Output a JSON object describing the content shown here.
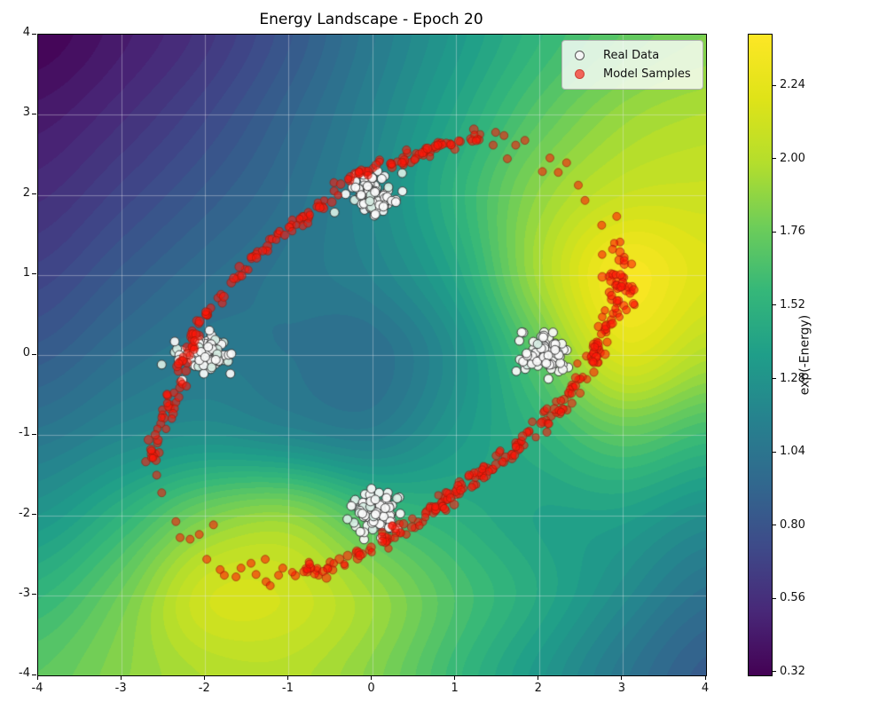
{
  "title": "Energy Landscape - Epoch 20",
  "legend": {
    "items": [
      {
        "label": "Real Data",
        "marker_fill": "#f5f5f5",
        "marker_edge": "#555555"
      },
      {
        "label": "Model Samples",
        "marker_fill": "#f2655a",
        "marker_edge": "#cc4437"
      }
    ]
  },
  "axes": {
    "xtick_labels": [
      "-4",
      "-3",
      "-2",
      "-1",
      "0",
      "1",
      "2",
      "3",
      "4"
    ],
    "xtick_values": [
      -4,
      -3,
      -2,
      -1,
      0,
      1,
      2,
      3,
      4
    ],
    "ytick_labels": [
      "4",
      "3",
      "2",
      "1",
      "0",
      "-1",
      "-2",
      "-3",
      "-4"
    ],
    "ytick_values": [
      4,
      3,
      2,
      1,
      0,
      -1,
      -2,
      -3,
      -4
    ],
    "grid_color": "rgba(235,235,240,0.38)"
  },
  "colorbar": {
    "label": "exp(-Energy)",
    "tick_labels": [
      "2.24",
      "2.00",
      "1.76",
      "1.52",
      "1.28",
      "1.04",
      "0.80",
      "0.56",
      "0.32"
    ],
    "tick_values": [
      2.24,
      2.0,
      1.76,
      1.52,
      1.28,
      1.04,
      0.8,
      0.56,
      0.32
    ]
  },
  "chart_data": {
    "type": "heatmap",
    "title": "Energy Landscape - Epoch 20",
    "xlim": [
      -4,
      4
    ],
    "ylim": [
      -4,
      4
    ],
    "grid": true,
    "legend_position": "upper right",
    "colorbar_label": "exp(-Energy)",
    "vmin": 0.31,
    "vmax": 2.41,
    "contour_step": 0.052,
    "colormap": {
      "name": "viridis",
      "stops": [
        [
          0.0,
          "#440154"
        ],
        [
          0.1,
          "#482878"
        ],
        [
          0.2,
          "#3e4a89"
        ],
        [
          0.3,
          "#31688e"
        ],
        [
          0.4,
          "#26828e"
        ],
        [
          0.5,
          "#1f9e89"
        ],
        [
          0.6,
          "#35b779"
        ],
        [
          0.7,
          "#6dcd59"
        ],
        [
          0.8,
          "#b4de2c"
        ],
        [
          0.9,
          "#dfe318"
        ],
        [
          1.0,
          "#fde725"
        ]
      ]
    },
    "energy_grid": {
      "x": [
        -4,
        -3,
        -2,
        -1,
        0,
        1,
        2,
        3,
        4
      ],
      "y": [
        4,
        3,
        2,
        1,
        0,
        -1,
        -2,
        -3,
        -4
      ],
      "exp_neg_energy": [
        [
          0.32,
          0.45,
          0.6,
          0.82,
          1.08,
          1.32,
          1.55,
          1.72,
          1.82
        ],
        [
          0.44,
          0.56,
          0.72,
          0.92,
          1.15,
          1.42,
          1.7,
          1.9,
          1.98
        ],
        [
          0.56,
          0.7,
          0.85,
          1.0,
          1.2,
          1.52,
          1.88,
          2.08,
          2.1
        ],
        [
          0.7,
          0.85,
          0.98,
          1.06,
          1.15,
          1.42,
          1.95,
          2.36,
          2.2
        ],
        [
          0.86,
          1.0,
          1.08,
          1.04,
          1.0,
          1.25,
          1.72,
          2.18,
          2.0
        ],
        [
          1.06,
          1.18,
          1.25,
          1.18,
          1.12,
          1.32,
          1.52,
          1.72,
          1.6
        ],
        [
          1.3,
          1.52,
          1.8,
          1.88,
          1.62,
          1.5,
          1.4,
          1.38,
          1.25
        ],
        [
          1.55,
          1.78,
          2.12,
          2.12,
          1.92,
          1.66,
          1.45,
          1.22,
          1.02
        ],
        [
          1.72,
          1.86,
          1.98,
          2.0,
          1.85,
          1.58,
          1.32,
          1.06,
          0.86
        ]
      ]
    },
    "real_data": {
      "clusters": [
        {
          "center": [
            0.0,
            2.0
          ],
          "std": [
            0.14,
            0.12
          ],
          "count": 88
        },
        {
          "center": [
            -2.0,
            0.0
          ],
          "std": [
            0.14,
            0.12
          ],
          "count": 88
        },
        {
          "center": [
            2.05,
            0.0
          ],
          "std": [
            0.14,
            0.13
          ],
          "count": 88
        },
        {
          "center": [
            0.02,
            -2.0
          ],
          "std": [
            0.14,
            0.13
          ],
          "count": 88
        }
      ],
      "outliers": [
        [
          -0.45,
          1.78
        ],
        [
          0.3,
          -1.79
        ],
        [
          -2.52,
          -0.12
        ],
        [
          0.36,
          2.27
        ]
      ],
      "style": {
        "fill": "rgba(250,250,250,0.92)",
        "fill_alt": "rgba(215,238,228,0.92)",
        "edge": "rgba(45,45,45,0.9)",
        "radius": 5
      }
    },
    "model_samples": {
      "blob": {
        "center": [
          2.96,
          0.88
        ],
        "std": [
          0.09,
          0.22
        ],
        "count": 42
      },
      "segments": [
        {
          "pts": [
            [
              -0.62,
              -2.7
            ],
            [
              -0.2,
              -2.5
            ],
            [
              0.15,
              -2.32
            ],
            [
              0.55,
              -2.05
            ],
            [
              1.0,
              -1.72
            ],
            [
              1.45,
              -1.38
            ],
            [
              1.9,
              -1.0
            ],
            [
              2.3,
              -0.6
            ],
            [
              2.6,
              -0.15
            ],
            [
              2.78,
              0.25
            ],
            [
              2.9,
              0.62
            ]
          ],
          "count": 205,
          "jitter": 0.05
        },
        {
          "pts": [
            [
              1.33,
              2.72
            ],
            [
              1.1,
              2.7
            ],
            [
              0.85,
              2.62
            ],
            [
              0.6,
              2.52
            ],
            [
              0.38,
              2.44
            ],
            [
              0.13,
              2.37
            ],
            [
              -0.12,
              2.28
            ],
            [
              -0.35,
              2.12
            ],
            [
              -0.52,
              1.96
            ],
            [
              -0.66,
              1.82
            ]
          ],
          "count": 78,
          "jitter": 0.045
        },
        {
          "pts": [
            [
              -0.7,
              1.78
            ],
            [
              -0.95,
              1.62
            ],
            [
              -1.2,
              1.42
            ],
            [
              -1.42,
              1.18
            ],
            [
              -1.6,
              0.98
            ],
            [
              -1.78,
              0.75
            ],
            [
              -1.95,
              0.55
            ],
            [
              -2.08,
              0.42
            ]
          ],
          "count": 55,
          "jitter": 0.04
        },
        {
          "pts": [
            [
              -2.12,
              0.32
            ],
            [
              -2.2,
              0.05
            ],
            [
              -2.3,
              -0.25
            ],
            [
              -2.42,
              -0.55
            ],
            [
              -2.52,
              -0.85
            ],
            [
              -2.6,
              -1.1
            ],
            [
              -2.65,
              -1.3
            ]
          ],
          "count": 62,
          "jitter": 0.045
        },
        {
          "pts": [
            [
              -1.05,
              -2.72
            ],
            [
              -0.85,
              -2.7
            ],
            [
              -0.62,
              -2.7
            ]
          ],
          "count": 14,
          "jitter": 0.05
        }
      ],
      "outliers": [
        [
          2.93,
          1.73
        ],
        [
          2.75,
          1.62
        ],
        [
          2.55,
          1.93
        ],
        [
          2.47,
          2.12
        ],
        [
          2.33,
          2.4
        ],
        [
          2.23,
          2.28
        ],
        [
          2.13,
          2.46
        ],
        [
          2.04,
          2.29
        ],
        [
          1.83,
          2.68
        ],
        [
          1.72,
          2.62
        ],
        [
          1.62,
          2.45
        ],
        [
          1.58,
          2.74
        ],
        [
          1.48,
          2.78
        ],
        [
          1.45,
          2.62
        ],
        [
          3.02,
          1.18
        ],
        [
          2.88,
          1.32
        ],
        [
          -2.58,
          -1.5
        ],
        [
          -2.52,
          -1.72
        ],
        [
          -2.35,
          -2.08
        ],
        [
          -2.3,
          -2.28
        ],
        [
          -2.18,
          -2.3
        ],
        [
          -2.07,
          -2.24
        ],
        [
          -1.98,
          -2.55
        ],
        [
          -1.9,
          -2.12
        ],
        [
          -1.82,
          -2.68
        ],
        [
          -1.77,
          -2.75
        ],
        [
          -1.63,
          -2.77
        ],
        [
          -1.57,
          -2.66
        ],
        [
          -1.45,
          -2.6
        ],
        [
          -1.39,
          -2.74
        ],
        [
          -1.28,
          -2.55
        ],
        [
          -1.27,
          -2.83
        ],
        [
          -1.22,
          -2.88
        ],
        [
          -1.12,
          -2.75
        ],
        [
          -1.07,
          -2.66
        ]
      ],
      "style": {
        "fill": "rgba(255,22,8,0.58)",
        "edge": "rgba(150,25,8,0.6)",
        "radius": 4.5
      }
    },
    "seed": 1234
  }
}
